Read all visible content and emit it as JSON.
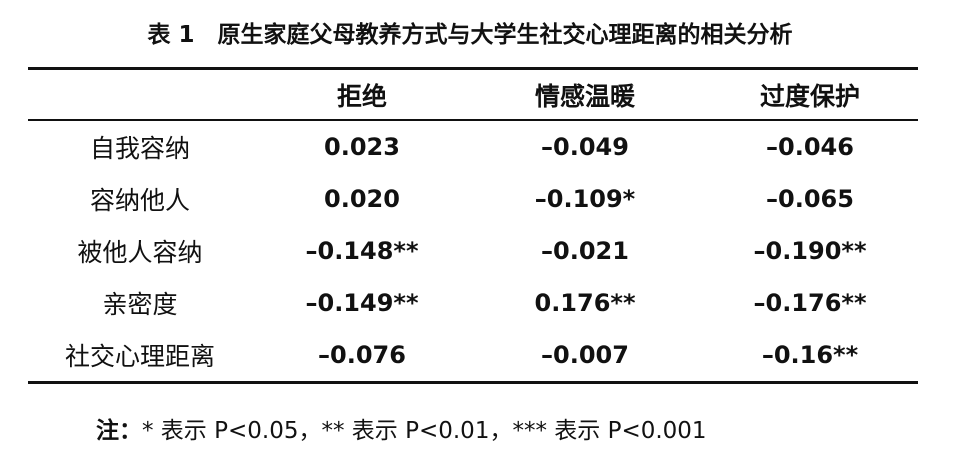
{
  "title": "表 1　原生家庭父母教养方式与大学生社交心理距离的相关分析",
  "table": {
    "columns": [
      "拒绝",
      "情感温暖",
      "过度保护"
    ],
    "rows": [
      {
        "label": "自我容纳",
        "cells": [
          "0.023",
          "–0.049",
          "–0.046"
        ]
      },
      {
        "label": "容纳他人",
        "cells": [
          "0.020",
          "–0.109*",
          "–0.065"
        ]
      },
      {
        "label": "被他人容纳",
        "cells": [
          "–0.148**",
          "–0.021",
          "–0.190**"
        ]
      },
      {
        "label": "亲密度",
        "cells": [
          "–0.149**",
          "0.176**",
          "–0.176**"
        ]
      },
      {
        "label": "社交心理距离",
        "cells": [
          "–0.076",
          "–0.007",
          "–0.16**"
        ]
      }
    ]
  },
  "note": {
    "label": "注：",
    "text": "* 表示 P<0.05，** 表示 P<0.01，*** 表示 P<0.001"
  }
}
